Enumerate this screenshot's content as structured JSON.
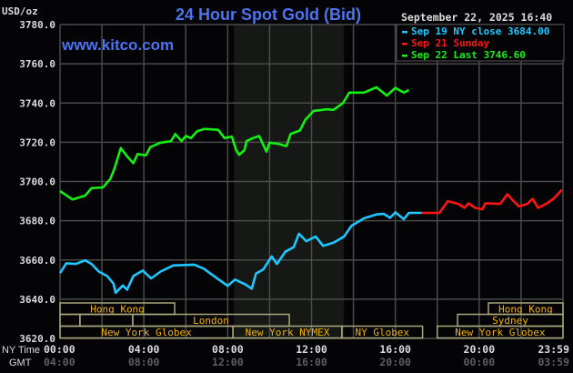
{
  "chart_data": {
    "type": "line",
    "title": "24 Hour Spot Gold (Bid)",
    "watermark": "www.kitco.com",
    "timestamp": "September 22, 2025 16:40",
    "ylabel": "USD/oz",
    "ylim": [
      3620,
      3780
    ],
    "yticks": [
      "3780.0",
      "3760.0",
      "3740.0",
      "3720.0",
      "3700.0",
      "3680.0",
      "3660.0",
      "3640.0",
      "3620.0"
    ],
    "ytick_values": [
      3780,
      3760,
      3740,
      3720,
      3700,
      3680,
      3660,
      3640,
      3620
    ],
    "xlim_hours": [
      0,
      24
    ],
    "grid": true,
    "x_axis_rows": [
      {
        "name": "NY Time",
        "ticks": [
          "00:00",
          "04:00",
          "08:00",
          "12:00",
          "16:00",
          "20:00",
          "23:59"
        ]
      },
      {
        "name": "GMT",
        "ticks": [
          "04:00",
          "08:00",
          "12:00",
          "16:00",
          "20:00",
          "00:00",
          "03:59"
        ]
      }
    ],
    "tick_hours": [
      0,
      4,
      8,
      12,
      16,
      20,
      24
    ],
    "shaded_period_hours": [
      8.3,
      13.55
    ],
    "legend_placement": "top-right",
    "series": [
      {
        "name": "Sep 19 NY close 3684.00",
        "color": "#1ec8ff",
        "x_hours": [
          0,
          0.3,
          0.75,
          1.2,
          1.5,
          1.85,
          2.25,
          2.55,
          2.65,
          3.0,
          3.2,
          3.5,
          3.95,
          4.35,
          4.8,
          5.4,
          6.4,
          6.85,
          7.55,
          8.0,
          8.35,
          8.85,
          9.15,
          9.35,
          9.7,
          10.1,
          10.35,
          10.75,
          11.15,
          11.4,
          11.75,
          12.2,
          12.55,
          13.05,
          13.55,
          13.9,
          14.5,
          15.1,
          15.45,
          15.75,
          16.0,
          16.4,
          16.65,
          17.25
        ],
        "values": [
          3653.3,
          3658.3,
          3658,
          3659.8,
          3658,
          3654.1,
          3651.8,
          3647.9,
          3643.3,
          3647,
          3644.8,
          3651.8,
          3654.6,
          3650.6,
          3654.1,
          3657.2,
          3657.6,
          3655.6,
          3650.2,
          3646.8,
          3650,
          3647.5,
          3645.3,
          3653,
          3655.2,
          3661.8,
          3658,
          3664.2,
          3666.5,
          3673.4,
          3669.6,
          3671.9,
          3667.2,
          3668.8,
          3671.9,
          3677.3,
          3681.2,
          3683.2,
          3683.5,
          3681.5,
          3684.3,
          3680.8,
          3684,
          3684
        ]
      },
      {
        "name": "Sep 21 Sunday",
        "color": "#ff1414",
        "x_hours": [
          17.25,
          18.1,
          18.5,
          19.0,
          19.3,
          19.5,
          19.8,
          20.15,
          20.3,
          21.0,
          21.35,
          21.6,
          21.9,
          22.3,
          22.55,
          22.8,
          23.2,
          23.55,
          23.95
        ],
        "values": [
          3684,
          3684,
          3690,
          3688.6,
          3686.6,
          3688.9,
          3686.6,
          3685.8,
          3688.9,
          3688.6,
          3693.5,
          3690.4,
          3687.3,
          3688.6,
          3691.2,
          3686.6,
          3688.6,
          3691.2,
          3695.8
        ]
      },
      {
        "name": "Sep 22 Last 3746.60",
        "color": "#14f014",
        "x_hours": [
          0,
          0.6,
          1.2,
          1.5,
          2.05,
          2.4,
          2.6,
          2.9,
          3.2,
          3.5,
          3.7,
          4.1,
          4.3,
          4.8,
          5.3,
          5.5,
          5.8,
          6.0,
          6.25,
          6.55,
          6.9,
          7.55,
          7.85,
          8.2,
          8.4,
          8.55,
          8.8,
          8.9,
          9.2,
          9.5,
          9.85,
          10.0,
          10.45,
          10.8,
          11.0,
          11.45,
          11.7,
          12.1,
          12.75,
          13.05,
          13.5,
          13.8,
          14.5,
          15.1,
          15.6,
          16.0,
          16.4,
          16.65
        ],
        "values": [
          3695.1,
          3690.8,
          3692.8,
          3696.6,
          3697,
          3701.3,
          3706.7,
          3717,
          3712.9,
          3709.3,
          3714,
          3713.3,
          3717.5,
          3719.8,
          3720.6,
          3724.2,
          3720.6,
          3723.2,
          3722.1,
          3725.7,
          3726.8,
          3726.3,
          3722.1,
          3722.9,
          3716,
          3713.6,
          3716,
          3720.6,
          3722.1,
          3723.2,
          3715.2,
          3719.8,
          3719.1,
          3718,
          3724.2,
          3726,
          3731.4,
          3736,
          3736.8,
          3736.5,
          3740,
          3745.3,
          3745.3,
          3748,
          3743.8,
          3747.7,
          3745.3,
          3746.6
        ]
      }
    ],
    "sessions": {
      "color_text": "#f5b400",
      "color_border": "#a8a67a",
      "rows": [
        [
          {
            "label": "Hong Kong",
            "start": 0,
            "end": 5.47
          },
          {
            "label": "Hong Kong",
            "start": 20.44,
            "end": 24
          }
        ],
        [
          {
            "label": "",
            "start": 0,
            "end": 0.95
          },
          {
            "label": "",
            "start": 0.95,
            "end": 3.47
          },
          {
            "label": "London",
            "start": 3.47,
            "end": 10.94
          },
          {
            "label": "Sydney",
            "start": 18.97,
            "end": 24
          }
        ],
        [
          {
            "label": "New York Globex",
            "start": 0,
            "end": 8.25
          },
          {
            "label": "New York NYMEX",
            "start": 8.25,
            "end": 13.45
          },
          {
            "label": "NY Globex",
            "start": 13.45,
            "end": 17.3
          },
          {
            "label": "New York Globex",
            "start": 18.0,
            "end": 24
          }
        ]
      ]
    }
  }
}
